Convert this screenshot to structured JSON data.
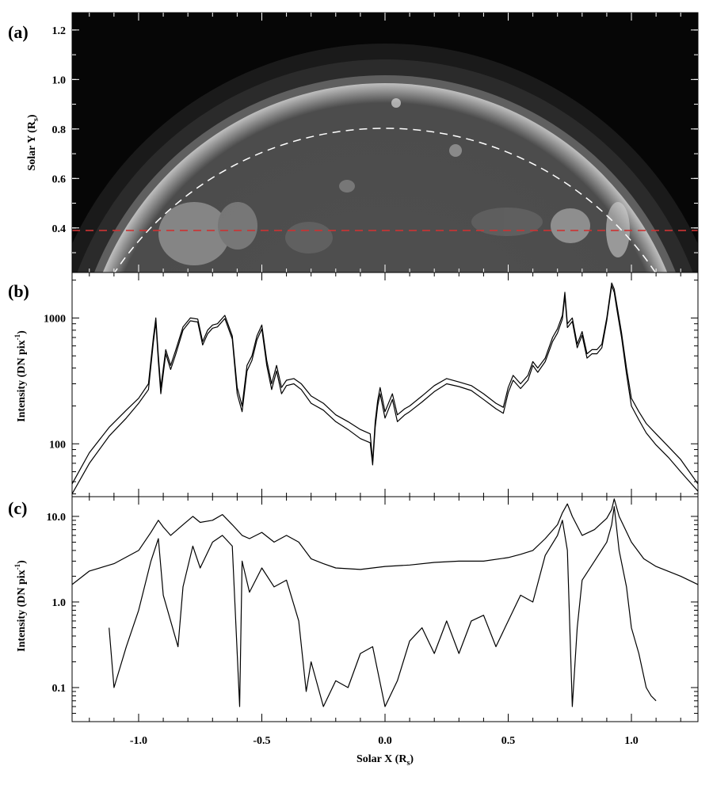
{
  "panel_labels": {
    "a": "(a)",
    "b": "(b)",
    "c": "(c)"
  },
  "axis_titles": {
    "a_y": "Solar Y (R",
    "a_y_sub": "s",
    "a_y_close": ")",
    "b_y": "Intensity (DN pix",
    "b_y_sup": "-1",
    "b_y_close": ")",
    "c_y": "Intensity (DN pix",
    "c_y_sup": "-1",
    "c_y_close": ")",
    "x": "Solar X (R",
    "x_sub": "s",
    "x_close": ")"
  },
  "colors": {
    "marker_line": "#cc3333",
    "limb_circle": "#ffffff",
    "trace": "#000000"
  },
  "chart_data": [
    {
      "panel": "a",
      "type": "image",
      "xlim": [
        -1.27,
        1.27
      ],
      "ylim": [
        0.22,
        1.27
      ],
      "yticks": [
        0.4,
        0.6,
        0.8,
        1.0,
        1.2
      ],
      "ytick_labels": [
        "0.4",
        "0.6",
        "0.8",
        "1.0",
        "1.2"
      ],
      "solar_limb_radius": 1.0,
      "dashed_circle_radius": 1.3,
      "horizontal_cut_y": 0.39
    },
    {
      "panel": "b",
      "type": "line",
      "yscale": "log",
      "xlim": [
        -1.27,
        1.27
      ],
      "ylim": [
        38,
        2300
      ],
      "yticks": [
        100,
        1000
      ],
      "ytick_labels": [
        "100",
        "1000"
      ],
      "series": [
        {
          "x": [
            -1.27,
            -1.2,
            -1.12,
            -1.05,
            -1.0,
            -0.96,
            -0.94,
            -0.93,
            -0.92,
            -0.91,
            -0.89,
            -0.87,
            -0.85,
            -0.82,
            -0.79,
            -0.76,
            -0.74,
            -0.72,
            -0.7,
            -0.68,
            -0.65,
            -0.62,
            -0.6,
            -0.58,
            -0.56,
            -0.54,
            -0.52,
            -0.5,
            -0.48,
            -0.46,
            -0.44,
            -0.42,
            -0.4,
            -0.37,
            -0.34,
            -0.3,
            -0.25,
            -0.2,
            -0.15,
            -0.1,
            -0.06,
            -0.05,
            -0.04,
            -0.03,
            -0.02,
            0.0,
            0.03,
            0.05,
            0.08,
            0.1,
            0.15,
            0.2,
            0.25,
            0.3,
            0.35,
            0.4,
            0.45,
            0.48,
            0.5,
            0.52,
            0.55,
            0.58,
            0.6,
            0.62,
            0.65,
            0.68,
            0.7,
            0.72,
            0.73,
            0.74,
            0.76,
            0.78,
            0.8,
            0.82,
            0.84,
            0.86,
            0.88,
            0.9,
            0.92,
            0.93,
            0.94,
            0.96,
            0.98,
            1.0,
            1.03,
            1.06,
            1.1,
            1.15,
            1.2,
            1.27
          ],
          "values": [
            48,
            85,
            135,
            185,
            230,
            300,
            700,
            1000,
            500,
            280,
            560,
            420,
            550,
            850,
            1000,
            980,
            650,
            800,
            880,
            900,
            1050,
            720,
            280,
            200,
            420,
            500,
            720,
            880,
            460,
            300,
            420,
            280,
            320,
            330,
            300,
            240,
            210,
            170,
            150,
            130,
            120,
            72,
            150,
            220,
            280,
            180,
            250,
            170,
            190,
            200,
            240,
            290,
            330,
            310,
            290,
            250,
            210,
            195,
            280,
            350,
            300,
            350,
            450,
            400,
            480,
            700,
            820,
            1050,
            1600,
            900,
            1000,
            620,
            780,
            520,
            560,
            560,
            620,
            1000,
            1900,
            1700,
            1300,
            760,
            400,
            230,
            180,
            145,
            120,
            95,
            75,
            48
          ]
        },
        {
          "x": [
            -1.27,
            -1.2,
            -1.12,
            -1.05,
            -1.0,
            -0.96,
            -0.94,
            -0.93,
            -0.92,
            -0.91,
            -0.89,
            -0.87,
            -0.85,
            -0.82,
            -0.79,
            -0.76,
            -0.74,
            -0.72,
            -0.7,
            -0.68,
            -0.65,
            -0.62,
            -0.6,
            -0.58,
            -0.56,
            -0.54,
            -0.52,
            -0.5,
            -0.48,
            -0.46,
            -0.44,
            -0.42,
            -0.4,
            -0.37,
            -0.34,
            -0.3,
            -0.25,
            -0.2,
            -0.15,
            -0.1,
            -0.06,
            -0.05,
            -0.04,
            -0.03,
            -0.02,
            0.0,
            0.03,
            0.05,
            0.08,
            0.1,
            0.15,
            0.2,
            0.25,
            0.3,
            0.35,
            0.4,
            0.45,
            0.48,
            0.5,
            0.52,
            0.55,
            0.58,
            0.6,
            0.62,
            0.65,
            0.68,
            0.7,
            0.72,
            0.73,
            0.74,
            0.76,
            0.78,
            0.8,
            0.82,
            0.84,
            0.86,
            0.88,
            0.9,
            0.92,
            0.93,
            0.94,
            0.96,
            0.98,
            1.0,
            1.03,
            1.06,
            1.1,
            1.15,
            1.2,
            1.27
          ],
          "values": [
            40,
            70,
            115,
            160,
            210,
            270,
            640,
            930,
            450,
            250,
            520,
            390,
            510,
            800,
            950,
            930,
            610,
            750,
            830,
            850,
            990,
            680,
            250,
            180,
            380,
            460,
            670,
            820,
            420,
            270,
            380,
            250,
            290,
            300,
            270,
            210,
            185,
            150,
            130,
            110,
            102,
            68,
            135,
            200,
            250,
            160,
            225,
            150,
            170,
            180,
            215,
            260,
            300,
            285,
            265,
            225,
            190,
            175,
            255,
            320,
            275,
            320,
            420,
            370,
            450,
            650,
            760,
            980,
            1500,
            840,
            940,
            580,
            730,
            480,
            520,
            520,
            580,
            950,
            1800,
            1600,
            1200,
            700,
            360,
            200,
            155,
            122,
            98,
            78,
            60,
            42
          ]
        }
      ]
    },
    {
      "panel": "c",
      "type": "line",
      "yscale": "log",
      "xlim": [
        -1.27,
        1.27
      ],
      "ylim": [
        0.04,
        17
      ],
      "yticks": [
        0.1,
        1.0,
        10.0
      ],
      "ytick_labels": [
        "0.1",
        "1.0",
        "10.0"
      ],
      "xticks": [
        -1.0,
        -0.5,
        0.0,
        0.5,
        1.0
      ],
      "xtick_labels": [
        "-1.0",
        "-0.5",
        "0.0",
        "0.5",
        "1.0"
      ],
      "series": [
        {
          "x": [
            -1.27,
            -1.2,
            -1.1,
            -1.0,
            -0.95,
            -0.92,
            -0.9,
            -0.87,
            -0.82,
            -0.78,
            -0.75,
            -0.7,
            -0.66,
            -0.62,
            -0.58,
            -0.55,
            -0.5,
            -0.45,
            -0.4,
            -0.35,
            -0.3,
            -0.25,
            -0.2,
            -0.1,
            0.0,
            0.1,
            0.2,
            0.3,
            0.4,
            0.5,
            0.55,
            0.6,
            0.65,
            0.7,
            0.72,
            0.74,
            0.76,
            0.8,
            0.85,
            0.9,
            0.92,
            0.93,
            0.95,
            1.0,
            1.05,
            1.1,
            1.2,
            1.27
          ],
          "values": [
            1.6,
            2.3,
            2.8,
            4.0,
            6.5,
            9.0,
            7.5,
            6.0,
            8.0,
            10.0,
            8.5,
            9.0,
            10.5,
            8.0,
            6.0,
            5.5,
            6.5,
            5.0,
            6.0,
            5.0,
            3.2,
            2.8,
            2.5,
            2.4,
            2.6,
            2.7,
            2.9,
            3.0,
            3.0,
            3.3,
            3.6,
            4.0,
            5.5,
            8.0,
            11.0,
            14.0,
            10.0,
            6.0,
            7.0,
            9.5,
            12.0,
            16.0,
            10.0,
            5.0,
            3.2,
            2.6,
            2.0,
            1.6
          ]
        },
        {
          "x": [
            -1.12,
            -1.1,
            -1.05,
            -1.0,
            -0.95,
            -0.92,
            -0.9,
            -0.87,
            -0.84,
            -0.82,
            -0.78,
            -0.75,
            -0.7,
            -0.66,
            -0.62,
            -0.59,
            -0.58,
            -0.55,
            -0.5,
            -0.45,
            -0.4,
            -0.35,
            -0.32,
            -0.3,
            -0.25,
            -0.2,
            -0.15,
            -0.1,
            -0.05,
            0.0,
            0.05,
            0.1,
            0.15,
            0.2,
            0.25,
            0.3,
            0.35,
            0.4,
            0.45,
            0.5,
            0.55,
            0.6,
            0.65,
            0.7,
            0.72,
            0.74,
            0.76,
            0.78,
            0.8,
            0.85,
            0.9,
            0.92,
            0.93,
            0.95,
            0.98,
            1.0,
            1.03,
            1.06,
            1.08,
            1.1
          ],
          "values": [
            0.5,
            0.1,
            0.3,
            0.8,
            3.0,
            5.5,
            1.2,
            0.6,
            0.3,
            1.5,
            4.5,
            2.5,
            5.0,
            6.0,
            4.5,
            0.06,
            3.0,
            1.3,
            2.5,
            1.5,
            1.8,
            0.6,
            0.09,
            0.2,
            0.06,
            0.12,
            0.1,
            0.25,
            0.3,
            0.06,
            0.12,
            0.35,
            0.5,
            0.25,
            0.6,
            0.25,
            0.6,
            0.7,
            0.3,
            0.6,
            1.2,
            1.0,
            3.5,
            6.0,
            9.0,
            4.0,
            0.06,
            0.5,
            1.8,
            3.0,
            5.0,
            8.0,
            13.0,
            4.0,
            1.5,
            0.5,
            0.25,
            0.1,
            0.08,
            0.07
          ]
        }
      ]
    }
  ]
}
